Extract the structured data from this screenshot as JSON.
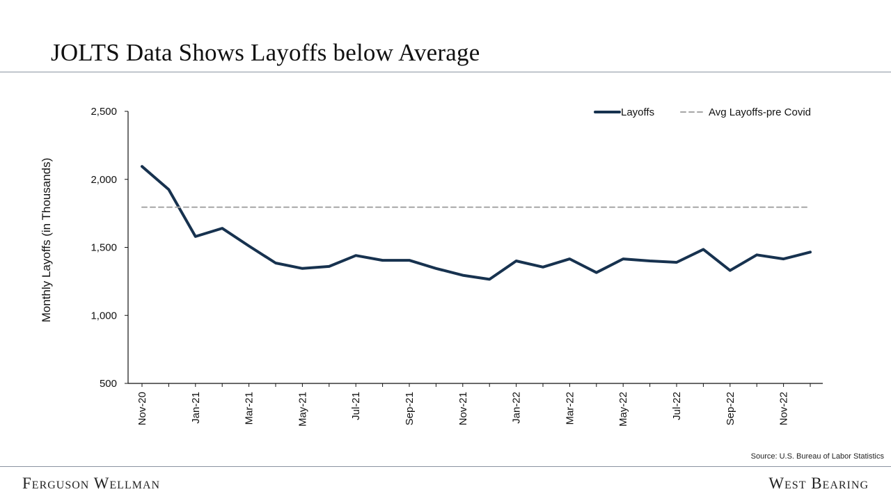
{
  "header": {
    "title": "JOLTS Data Shows Layoffs below Average"
  },
  "footer": {
    "source": "Source: U.S. Bureau of Labor Statistics",
    "brand_left": "Ferguson Wellman",
    "brand_right": "West Bearing"
  },
  "colors": {
    "layoffs_line": "#17324f",
    "average_line": "#a6a6a6",
    "axis": "#111111"
  },
  "chart_data": {
    "type": "line",
    "title": "JOLTS Data Shows Layoffs below Average",
    "xlabel": "",
    "ylabel": "Monthly Layoffs (in Thousands)",
    "ylim": [
      500,
      2500
    ],
    "yticks": [
      500,
      1000,
      1500,
      2000,
      2500
    ],
    "ytick_labels": [
      "500",
      "1,000",
      "1,500",
      "2,000",
      "2,500"
    ],
    "x": [
      "Nov-20",
      "Dec-20",
      "Jan-21",
      "Feb-21",
      "Mar-21",
      "Apr-21",
      "May-21",
      "Jun-21",
      "Jul-21",
      "Aug-21",
      "Sep-21",
      "Oct-21",
      "Nov-21",
      "Dec-21",
      "Jan-22",
      "Feb-22",
      "Mar-22",
      "Apr-22",
      "May-22",
      "Jun-22",
      "Jul-22",
      "Aug-22",
      "Sep-22",
      "Oct-22",
      "Nov-22",
      "Dec-22"
    ],
    "xtick_labels": [
      "Nov-20",
      "Jan-21",
      "Mar-21",
      "May-21",
      "Jul-21",
      "Sep-21",
      "Nov-21",
      "Jan-22",
      "Mar-22",
      "May-22",
      "Jul-22",
      "Sep-22",
      "Nov-22"
    ],
    "grid": false,
    "legend": "top-right",
    "series": [
      {
        "name": "Layoffs",
        "style": "solid",
        "values": [
          2095,
          1925,
          1580,
          1640,
          1510,
          1385,
          1345,
          1360,
          1440,
          1405,
          1405,
          1345,
          1295,
          1265,
          1400,
          1355,
          1415,
          1315,
          1415,
          1400,
          1390,
          1485,
          1330,
          1445,
          1415,
          1465
        ]
      },
      {
        "name": "Avg Layoffs-pre Covid",
        "style": "dashed",
        "values": [
          1795,
          1795,
          1795,
          1795,
          1795,
          1795,
          1795,
          1795,
          1795,
          1795,
          1795,
          1795,
          1795,
          1795,
          1795,
          1795,
          1795,
          1795,
          1795,
          1795,
          1795,
          1795,
          1795,
          1795,
          1795,
          1795
        ]
      }
    ]
  }
}
